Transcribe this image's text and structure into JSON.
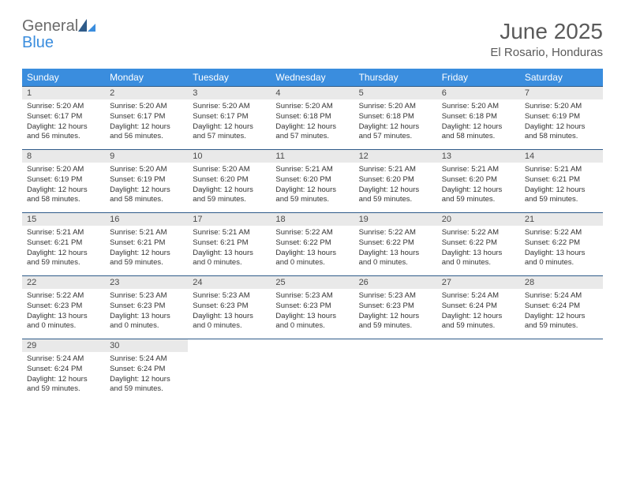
{
  "brand": {
    "general": "General",
    "blue": "Blue"
  },
  "title": "June 2025",
  "location": "El Rosario, Honduras",
  "colors": {
    "header_bg": "#3a8dde",
    "header_text": "#ffffff",
    "row_border": "#2f5b89",
    "daynum_bg": "#e9e9e9",
    "text": "#333333",
    "title_color": "#5a5a5a",
    "logo_gray": "#6b6b6b",
    "logo_blue": "#3a8dde"
  },
  "weekdays": [
    "Sunday",
    "Monday",
    "Tuesday",
    "Wednesday",
    "Thursday",
    "Friday",
    "Saturday"
  ],
  "weeks": [
    [
      {
        "day": "1",
        "sunrise": "5:20 AM",
        "sunset": "6:17 PM",
        "daylight": "12 hours and 56 minutes."
      },
      {
        "day": "2",
        "sunrise": "5:20 AM",
        "sunset": "6:17 PM",
        "daylight": "12 hours and 56 minutes."
      },
      {
        "day": "3",
        "sunrise": "5:20 AM",
        "sunset": "6:17 PM",
        "daylight": "12 hours and 57 minutes."
      },
      {
        "day": "4",
        "sunrise": "5:20 AM",
        "sunset": "6:18 PM",
        "daylight": "12 hours and 57 minutes."
      },
      {
        "day": "5",
        "sunrise": "5:20 AM",
        "sunset": "6:18 PM",
        "daylight": "12 hours and 57 minutes."
      },
      {
        "day": "6",
        "sunrise": "5:20 AM",
        "sunset": "6:18 PM",
        "daylight": "12 hours and 58 minutes."
      },
      {
        "day": "7",
        "sunrise": "5:20 AM",
        "sunset": "6:19 PM",
        "daylight": "12 hours and 58 minutes."
      }
    ],
    [
      {
        "day": "8",
        "sunrise": "5:20 AM",
        "sunset": "6:19 PM",
        "daylight": "12 hours and 58 minutes."
      },
      {
        "day": "9",
        "sunrise": "5:20 AM",
        "sunset": "6:19 PM",
        "daylight": "12 hours and 58 minutes."
      },
      {
        "day": "10",
        "sunrise": "5:20 AM",
        "sunset": "6:20 PM",
        "daylight": "12 hours and 59 minutes."
      },
      {
        "day": "11",
        "sunrise": "5:21 AM",
        "sunset": "6:20 PM",
        "daylight": "12 hours and 59 minutes."
      },
      {
        "day": "12",
        "sunrise": "5:21 AM",
        "sunset": "6:20 PM",
        "daylight": "12 hours and 59 minutes."
      },
      {
        "day": "13",
        "sunrise": "5:21 AM",
        "sunset": "6:20 PM",
        "daylight": "12 hours and 59 minutes."
      },
      {
        "day": "14",
        "sunrise": "5:21 AM",
        "sunset": "6:21 PM",
        "daylight": "12 hours and 59 minutes."
      }
    ],
    [
      {
        "day": "15",
        "sunrise": "5:21 AM",
        "sunset": "6:21 PM",
        "daylight": "12 hours and 59 minutes."
      },
      {
        "day": "16",
        "sunrise": "5:21 AM",
        "sunset": "6:21 PM",
        "daylight": "12 hours and 59 minutes."
      },
      {
        "day": "17",
        "sunrise": "5:21 AM",
        "sunset": "6:21 PM",
        "daylight": "13 hours and 0 minutes."
      },
      {
        "day": "18",
        "sunrise": "5:22 AM",
        "sunset": "6:22 PM",
        "daylight": "13 hours and 0 minutes."
      },
      {
        "day": "19",
        "sunrise": "5:22 AM",
        "sunset": "6:22 PM",
        "daylight": "13 hours and 0 minutes."
      },
      {
        "day": "20",
        "sunrise": "5:22 AM",
        "sunset": "6:22 PM",
        "daylight": "13 hours and 0 minutes."
      },
      {
        "day": "21",
        "sunrise": "5:22 AM",
        "sunset": "6:22 PM",
        "daylight": "13 hours and 0 minutes."
      }
    ],
    [
      {
        "day": "22",
        "sunrise": "5:22 AM",
        "sunset": "6:23 PM",
        "daylight": "13 hours and 0 minutes."
      },
      {
        "day": "23",
        "sunrise": "5:23 AM",
        "sunset": "6:23 PM",
        "daylight": "13 hours and 0 minutes."
      },
      {
        "day": "24",
        "sunrise": "5:23 AM",
        "sunset": "6:23 PM",
        "daylight": "13 hours and 0 minutes."
      },
      {
        "day": "25",
        "sunrise": "5:23 AM",
        "sunset": "6:23 PM",
        "daylight": "13 hours and 0 minutes."
      },
      {
        "day": "26",
        "sunrise": "5:23 AM",
        "sunset": "6:23 PM",
        "daylight": "12 hours and 59 minutes."
      },
      {
        "day": "27",
        "sunrise": "5:24 AM",
        "sunset": "6:24 PM",
        "daylight": "12 hours and 59 minutes."
      },
      {
        "day": "28",
        "sunrise": "5:24 AM",
        "sunset": "6:24 PM",
        "daylight": "12 hours and 59 minutes."
      }
    ],
    [
      {
        "day": "29",
        "sunrise": "5:24 AM",
        "sunset": "6:24 PM",
        "daylight": "12 hours and 59 minutes."
      },
      {
        "day": "30",
        "sunrise": "5:24 AM",
        "sunset": "6:24 PM",
        "daylight": "12 hours and 59 minutes."
      },
      null,
      null,
      null,
      null,
      null
    ]
  ],
  "labels": {
    "sunrise": "Sunrise: ",
    "sunset": "Sunset: ",
    "daylight": "Daylight: "
  }
}
